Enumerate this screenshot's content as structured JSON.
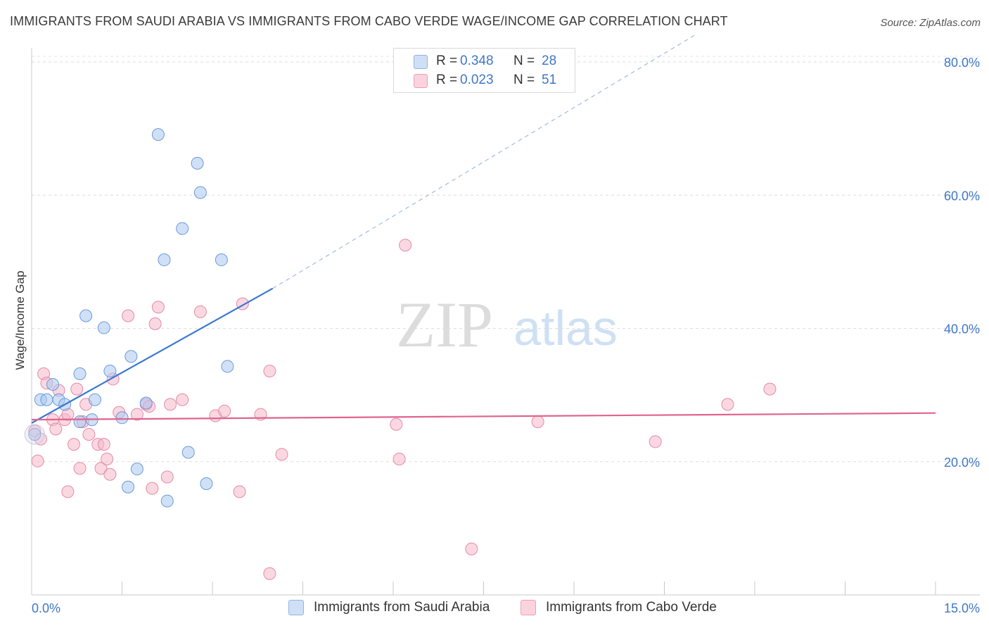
{
  "title": "IMMIGRANTS FROM SAUDI ARABIA VS IMMIGRANTS FROM CABO VERDE WAGE/INCOME GAP CORRELATION CHART",
  "source": "Source: ZipAtlas.com",
  "watermark": {
    "zip": "ZIP",
    "atlas": "atlas"
  },
  "legend": {
    "rows": [
      {
        "r_label": "R = ",
        "r_value": "0.348",
        "n_label": "N = ",
        "n_value": "28",
        "color": "#a9c8f0"
      },
      {
        "r_label": "R = ",
        "r_value": "0.023",
        "n_label": "N = ",
        "n_value": "51",
        "color": "#f6b8cb"
      }
    ]
  },
  "chart_data": {
    "type": "scatter",
    "xlabel": "",
    "ylabel": "Wage/Income Gap",
    "xlim": [
      0,
      15
    ],
    "ylim": [
      0,
      80
    ],
    "x_tick_labels": [
      "0.0%",
      "15.0%"
    ],
    "y_ticks": [
      20,
      40,
      60,
      80
    ],
    "y_tick_labels": [
      "20.0%",
      "40.0%",
      "60.0%",
      "80.0%"
    ],
    "grid": true,
    "legend_position": "top-center",
    "series": [
      {
        "name": "Immigrants from Saudi Arabia",
        "color": "#a9c8f0",
        "stroke": "#6a9ad8",
        "line_color": "#3b78d0",
        "trend": {
          "x": [
            0,
            4.0
          ],
          "y": [
            25.8,
            46.0
          ],
          "extended_x": [
            4.0,
            11.0
          ],
          "extended_y": [
            46.0,
            84.0
          ]
        },
        "points": [
          [
            0.05,
            24.1
          ],
          [
            0.15,
            29.3
          ],
          [
            0.25,
            29.3
          ],
          [
            0.35,
            31.6
          ],
          [
            0.45,
            29.3
          ],
          [
            0.55,
            28.6
          ],
          [
            0.8,
            33.2
          ],
          [
            0.8,
            26.0
          ],
          [
            0.9,
            41.9
          ],
          [
            1.0,
            26.3
          ],
          [
            1.05,
            29.3
          ],
          [
            1.2,
            40.1
          ],
          [
            1.3,
            33.6
          ],
          [
            1.5,
            26.6
          ],
          [
            1.6,
            16.2
          ],
          [
            1.65,
            35.8
          ],
          [
            1.75,
            18.9
          ],
          [
            1.9,
            28.8
          ],
          [
            2.1,
            69.1
          ],
          [
            2.2,
            50.3
          ],
          [
            2.25,
            14.1
          ],
          [
            2.5,
            55.0
          ],
          [
            2.6,
            21.4
          ],
          [
            2.75,
            64.8
          ],
          [
            2.8,
            60.4
          ],
          [
            2.9,
            16.7
          ],
          [
            3.15,
            50.3
          ],
          [
            3.25,
            34.3
          ]
        ]
      },
      {
        "name": "Immigrants from Cabo Verde",
        "color": "#f6b8cb",
        "stroke": "#e58aa8",
        "line_color": "#e0648f",
        "trend": {
          "x": [
            0,
            15
          ],
          "y": [
            26.3,
            27.3
          ]
        },
        "points": [
          [
            0.05,
            24.6
          ],
          [
            0.1,
            20.1
          ],
          [
            0.15,
            23.4
          ],
          [
            0.2,
            33.2
          ],
          [
            0.25,
            31.8
          ],
          [
            0.35,
            26.3
          ],
          [
            0.4,
            24.9
          ],
          [
            0.45,
            30.7
          ],
          [
            0.55,
            26.3
          ],
          [
            0.6,
            27.1
          ],
          [
            0.6,
            15.5
          ],
          [
            0.7,
            22.6
          ],
          [
            0.75,
            30.9
          ],
          [
            0.8,
            19.0
          ],
          [
            0.85,
            26.0
          ],
          [
            0.9,
            28.6
          ],
          [
            0.95,
            24.1
          ],
          [
            1.1,
            22.6
          ],
          [
            1.15,
            19.0
          ],
          [
            1.2,
            22.6
          ],
          [
            1.25,
            20.4
          ],
          [
            1.3,
            18.1
          ],
          [
            1.35,
            32.4
          ],
          [
            1.45,
            27.4
          ],
          [
            1.6,
            41.9
          ],
          [
            1.75,
            27.1
          ],
          [
            1.9,
            28.6
          ],
          [
            1.95,
            28.3
          ],
          [
            2.0,
            16.0
          ],
          [
            2.05,
            40.7
          ],
          [
            2.1,
            43.2
          ],
          [
            2.25,
            17.7
          ],
          [
            2.3,
            28.6
          ],
          [
            2.5,
            29.3
          ],
          [
            2.8,
            42.5
          ],
          [
            3.05,
            26.9
          ],
          [
            3.2,
            27.6
          ],
          [
            3.45,
            15.5
          ],
          [
            3.5,
            43.7
          ],
          [
            3.8,
            27.1
          ],
          [
            3.95,
            3.2
          ],
          [
            3.95,
            33.6
          ],
          [
            4.15,
            21.1
          ],
          [
            6.05,
            25.6
          ],
          [
            6.1,
            20.4
          ],
          [
            6.2,
            52.5
          ],
          [
            7.3,
            6.9
          ],
          [
            8.4,
            26.0
          ],
          [
            10.35,
            23.0
          ],
          [
            11.55,
            28.6
          ],
          [
            12.25,
            30.9
          ]
        ]
      }
    ]
  }
}
